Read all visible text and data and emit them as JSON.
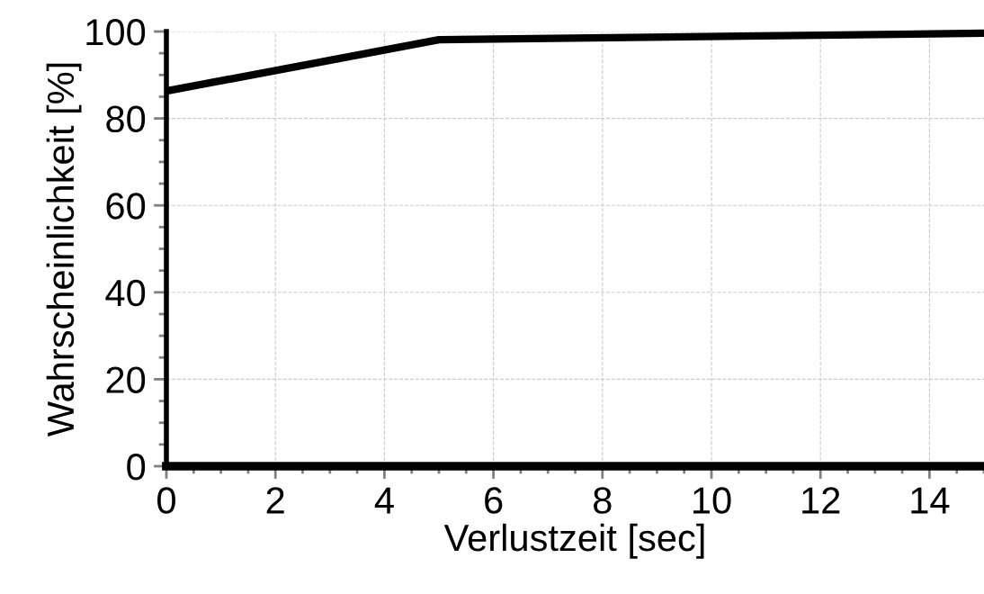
{
  "chart_data": {
    "type": "line",
    "xlabel": "Verlustzeit [sec]",
    "ylabel": "Wahrscheinlichkeit [%]",
    "x": [
      0,
      5,
      15
    ],
    "series": [
      {
        "color": "#000000",
        "values": [
          86.3,
          98.1,
          99.6
        ]
      }
    ],
    "xlim": [
      0,
      15
    ],
    "ylim": [
      0,
      100
    ],
    "xticks": [
      0,
      2,
      4,
      6,
      8,
      10,
      12,
      14
    ],
    "yticks": [
      0,
      20,
      40,
      60,
      80,
      100
    ],
    "grid": true,
    "legend": false,
    "marker": "none",
    "line_style": "solid"
  }
}
